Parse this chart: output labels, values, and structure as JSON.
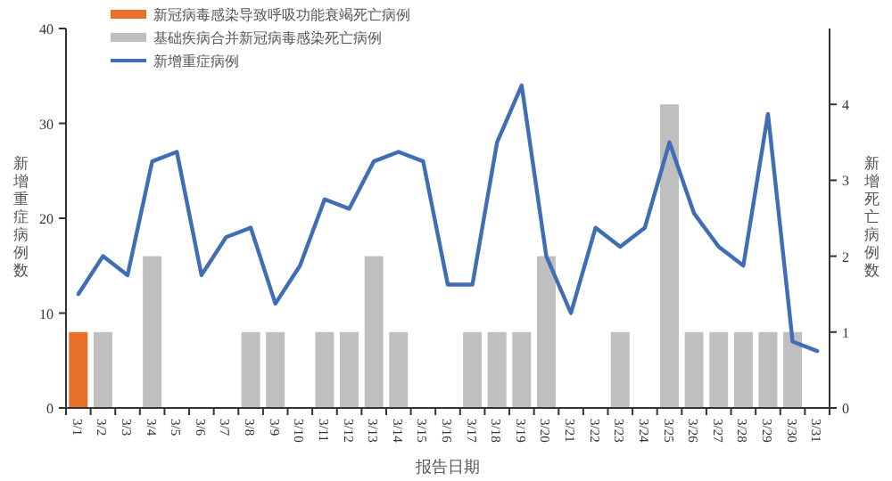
{
  "chart_data": {
    "type": "bar",
    "xlabel": "报告日期",
    "ylabel": "新增重症病例数",
    "y2label": "新增死亡病例数",
    "categories": [
      "3/1",
      "3/2",
      "3/3",
      "3/4",
      "3/5",
      "3/6",
      "3/7",
      "3/8",
      "3/9",
      "3/10",
      "3/11",
      "3/12",
      "3/13",
      "3/14",
      "3/15",
      "3/16",
      "3/17",
      "3/18",
      "3/19",
      "3/20",
      "3/21",
      "3/22",
      "3/23",
      "3/24",
      "3/25",
      "3/26",
      "3/27",
      "3/28",
      "3/29",
      "3/30",
      "3/31"
    ],
    "legend": "top left",
    "ylim": [
      0,
      40
    ],
    "yticks": [
      0,
      10,
      20,
      30,
      40
    ],
    "y2lim": [
      0,
      5
    ],
    "y2ticks": [
      0,
      1,
      2,
      3,
      4
    ],
    "series": [
      {
        "name": "新冠病毒感染导致呼吸功能衰竭死亡病例",
        "color": "#e8702a",
        "axis": "y2",
        "values": [
          1,
          0,
          0,
          0,
          0,
          0,
          0,
          0,
          0,
          0,
          0,
          0,
          0,
          0,
          0,
          0,
          0,
          0,
          0,
          0,
          0,
          0,
          0,
          0,
          0,
          0,
          0,
          0,
          0,
          0,
          0
        ]
      },
      {
        "name": "基础疾病合并新冠病毒感染死亡病例",
        "color": "#bfbfbf",
        "axis": "y2",
        "values": [
          0,
          1,
          0,
          2,
          0,
          0,
          0,
          1,
          1,
          0,
          1,
          1,
          2,
          1,
          0,
          0,
          1,
          1,
          1,
          2,
          0,
          0,
          1,
          0,
          4,
          1,
          1,
          1,
          1,
          1,
          0
        ]
      },
      {
        "name": "新增重症病例",
        "color": "#3f6eb5",
        "type": "line",
        "values": [
          12,
          16,
          14,
          26,
          27,
          14,
          18,
          19,
          11,
          15,
          22,
          21,
          26,
          27,
          26,
          13,
          13,
          28,
          34,
          16,
          10,
          19,
          17,
          19,
          28,
          20.5,
          17,
          15,
          31,
          7,
          6
        ]
      }
    ]
  }
}
